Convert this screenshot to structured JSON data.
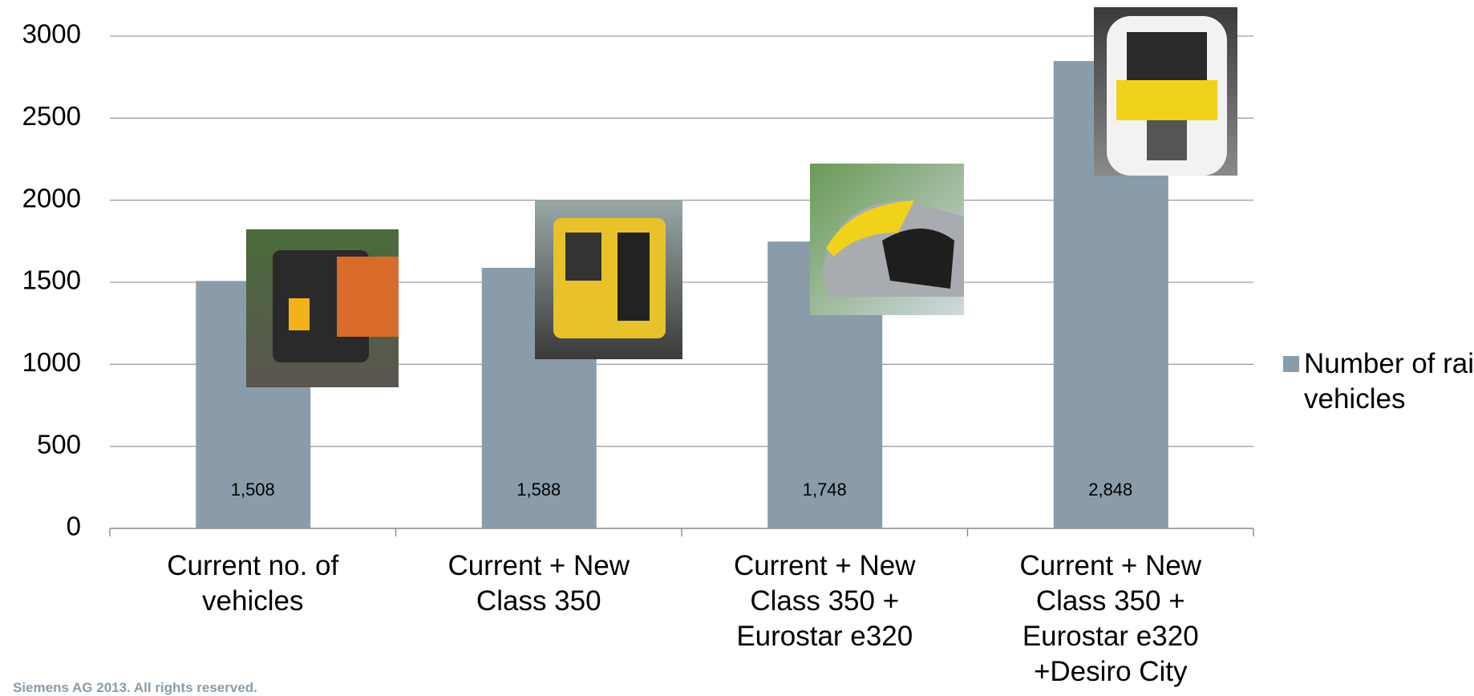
{
  "chart_data": {
    "type": "bar",
    "categories": [
      "Current no. of vehicles",
      "Current + New Class 350",
      "Current + New Class 350 + Eurostar e320",
      "Current + New Class 350 + Eurostar e320 +Desiro City"
    ],
    "series": [
      {
        "name": "Number of rail vehicles",
        "color": "#8a9caa",
        "values": [
          1508,
          1588,
          1748,
          2848
        ],
        "value_labels": [
          "1,508",
          "1,588",
          "1,748",
          "2,848"
        ]
      }
    ],
    "ylim": [
      0,
      3000
    ],
    "yticks": [
      0,
      500,
      1000,
      1500,
      2000,
      2500,
      3000
    ],
    "grid": true,
    "legend": "right"
  },
  "footer": "Siemens AG 2013. All rights reserved."
}
